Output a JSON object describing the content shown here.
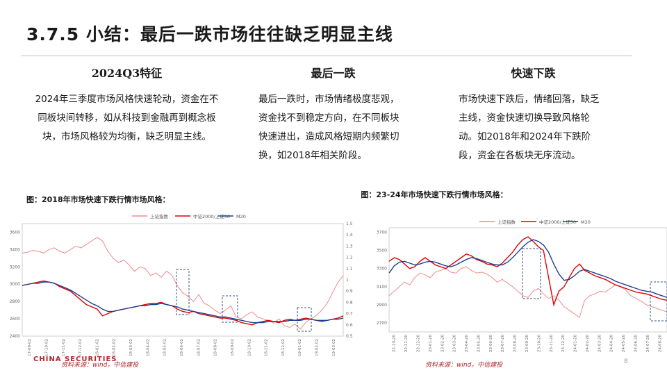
{
  "title": "3.7.5 小结：最后一跌市场往往缺乏明显主线",
  "columns": [
    {
      "heading": "2024Q3特征",
      "text": "2024年三季度市场风格快速轮动，资金在不同板块间转移，如从科技到金融再到概念板块，市场风格较为均衡，缺乏明显主线。"
    },
    {
      "heading": "最后一跌",
      "text": "最后一跌时，市场情绪极度悲观，资金找不到稳定方向，在不同板块快速进出，造成风格短期内频繁切换，如2018年相关阶段。"
    },
    {
      "heading": "快速下跌",
      "text": "市场快速下跌后，情绪回落，缺乏主线，资金快速切换导致风格轮动。如2018年和2024年下跌阶段，资金在各板块无序流动。"
    }
  ],
  "figure1": {
    "caption": "图：2018年市场快速下跌行情市场风格：",
    "source": "资料来源：wind，中信建投"
  },
  "figure2": {
    "caption": "图：23-24年市场快速下跌行情市场风格：",
    "source": "资料来源：wind，中信建投"
  },
  "logo": "CHINA SECURITIES",
  "page_number": "8",
  "colors": {
    "index": "#ef8a8a",
    "ratio": "#e00000",
    "ma": "#1f3f8f",
    "box": "#3a4f80"
  },
  "chart_data": [
    {
      "type": "line",
      "legend": [
        "上证指数",
        "中证2000/上证50",
        "M20"
      ],
      "y_left_ticks": [
        2400,
        2600,
        2800,
        3000,
        3200,
        3400,
        3600
      ],
      "y_right_ticks": [
        0.5,
        0.6,
        0.7,
        0.8,
        0.9,
        1,
        1.1,
        1.2,
        1.3,
        1.4,
        1.5
      ],
      "ylim_left": [
        2400,
        3700
      ],
      "ylim_right": [
        0.5,
        1.5
      ],
      "x_ticks": [
        "17-09-02",
        "17-10-02",
        "17-11-02",
        "17-12-02",
        "18-01-02",
        "18-02-02",
        "18-03-02",
        "18-04-02",
        "18-05-02",
        "18-06-02",
        "18-07-02",
        "18-08-02",
        "18-09-02",
        "18-10-02",
        "18-11-02",
        "18-12-02",
        "19-01-02",
        "19-02-02",
        "19-03-02"
      ],
      "series": [
        {
          "name": "上证指数",
          "axis": "left",
          "values": [
            3360,
            3370,
            3390,
            3380,
            3360,
            3400,
            3420,
            3380,
            3360,
            3400,
            3440,
            3420,
            3460,
            3500,
            3540,
            3500,
            3380,
            3300,
            3250,
            3280,
            3220,
            3150,
            3200,
            3180,
            3100,
            3130,
            3080,
            3150,
            3100,
            2980,
            2900,
            2860,
            2800,
            2880,
            2780,
            2750,
            2700,
            2660,
            2700,
            2750,
            2620,
            2600,
            2650,
            2680,
            2620,
            2600,
            2580,
            2550,
            2600,
            2520,
            2500,
            2540,
            2480,
            2560,
            2600,
            2640,
            2700,
            2780,
            2900,
            3020,
            3100
          ]
        },
        {
          "name": "中证2000/上证50",
          "axis": "right",
          "values": [
            0.95,
            0.96,
            0.97,
            0.98,
            0.99,
            0.98,
            0.97,
            0.94,
            0.92,
            0.9,
            0.86,
            0.82,
            0.78,
            0.76,
            0.74,
            0.68,
            0.7,
            0.72,
            0.73,
            0.74,
            0.75,
            0.76,
            0.77,
            0.78,
            0.79,
            0.79,
            0.8,
            0.78,
            0.77,
            0.74,
            0.72,
            0.71,
            0.72,
            0.7,
            0.69,
            0.68,
            0.67,
            0.66,
            0.66,
            0.65,
            0.64,
            0.62,
            0.61,
            0.6,
            0.62,
            0.63,
            0.64,
            0.63,
            0.62,
            0.64,
            0.65,
            0.64,
            0.65,
            0.66,
            0.65,
            0.64,
            0.63,
            0.64,
            0.65,
            0.66,
            0.68
          ]
        },
        {
          "name": "M20",
          "axis": "right",
          "values": [
            0.95,
            0.96,
            0.97,
            0.97,
            0.98,
            0.98,
            0.97,
            0.95,
            0.93,
            0.91,
            0.88,
            0.85,
            0.82,
            0.79,
            0.77,
            0.74,
            0.72,
            0.72,
            0.73,
            0.74,
            0.75,
            0.76,
            0.77,
            0.77,
            0.78,
            0.78,
            0.79,
            0.78,
            0.77,
            0.76,
            0.74,
            0.73,
            0.72,
            0.71,
            0.7,
            0.69,
            0.68,
            0.67,
            0.67,
            0.66,
            0.65,
            0.64,
            0.63,
            0.62,
            0.62,
            0.62,
            0.63,
            0.63,
            0.63,
            0.63,
            0.64,
            0.64,
            0.64,
            0.65,
            0.65,
            0.64,
            0.64,
            0.64,
            0.65,
            0.65,
            0.66
          ]
        }
      ]
    },
    {
      "type": "line",
      "legend": [
        "上证指数",
        "中证2000/上证50",
        "M20"
      ],
      "y_left_ticks": [
        2700,
        2900,
        3100,
        3300,
        3500,
        3700
      ],
      "ylim_left": [
        2600,
        3750
      ],
      "x_ticks": [
        "22-10-20",
        "22-11-20",
        "22-12-20",
        "23-01-20",
        "23-02-20",
        "23-03-20",
        "23-04-20",
        "23-05-20",
        "23-06-20",
        "23-07-20",
        "23-08-20",
        "23-09-20",
        "23-10-20",
        "23-11-20",
        "23-12-20",
        "24-01-20",
        "24-02-20",
        "24-03-20",
        "24-04-20",
        "24-05-20",
        "24-06-20",
        "24-07-20",
        "24-08-20"
      ],
      "series": [
        {
          "name": "上证指数",
          "axis": "left",
          "values": [
            3000,
            3050,
            3100,
            3150,
            3120,
            3200,
            3250,
            3230,
            3200,
            3260,
            3280,
            3300,
            3260,
            3250,
            3300,
            3320,
            3280,
            3250,
            3260,
            3240,
            3200,
            3150,
            3180,
            3140,
            3100,
            3050,
            3000,
            2980,
            3050,
            3080,
            3020,
            2970,
            3000,
            2950,
            2880,
            2840,
            2800,
            2760,
            2950,
            3000,
            3020,
            3050,
            3040,
            3080,
            3120,
            3100,
            3060,
            3000,
            2970,
            2940,
            2900,
            2880,
            2860,
            2840,
            2820
          ]
        },
        {
          "name": "中证2000/上证50",
          "axis": "right",
          "values": [
            3380,
            3420,
            3400,
            3350,
            3300,
            3320,
            3380,
            3420,
            3380,
            3340,
            3320,
            3300,
            3340,
            3380,
            3420,
            3460,
            3440,
            3400,
            3380,
            3350,
            3340,
            3320,
            3360,
            3420,
            3480,
            3560,
            3620,
            3650,
            3600,
            3540,
            3500,
            3200,
            2900,
            3050,
            3100,
            3200,
            3300,
            3350,
            3280,
            3250,
            3220,
            3200,
            3180,
            3150,
            3120,
            3100,
            3080,
            3060,
            3040,
            3030,
            3020,
            3000,
            2980,
            2960,
            2950
          ]
        },
        {
          "name": "M20",
          "axis": "right",
          "values": [
            3250,
            3330,
            3370,
            3380,
            3360,
            3340,
            3350,
            3370,
            3380,
            3370,
            3350,
            3330,
            3320,
            3340,
            3370,
            3400,
            3420,
            3410,
            3390,
            3370,
            3350,
            3340,
            3340,
            3370,
            3420,
            3480,
            3540,
            3590,
            3620,
            3600,
            3560,
            3480,
            3350,
            3240,
            3170,
            3180,
            3220,
            3270,
            3290,
            3270,
            3250,
            3230,
            3210,
            3190,
            3160,
            3140,
            3120,
            3100,
            3080,
            3060,
            3050,
            3040,
            3020,
            3000,
            2980
          ]
        }
      ]
    }
  ]
}
